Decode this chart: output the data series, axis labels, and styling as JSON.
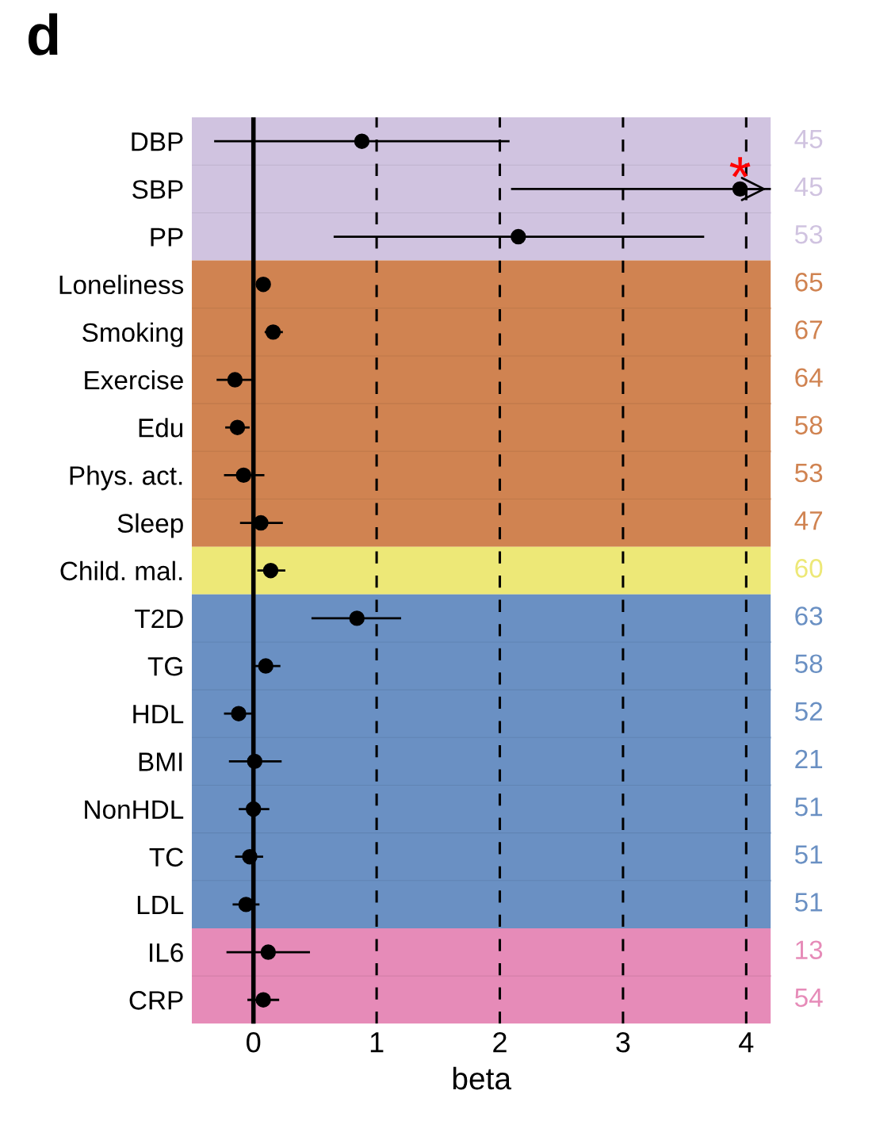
{
  "chart_data": {
    "type": "scatter",
    "orientation": "horizontal",
    "title": "d",
    "xlabel": "beta",
    "categories": [
      "DBP",
      "SBP",
      "PP",
      "Loneliness",
      "Smoking",
      "Exercise",
      "Edu",
      "Phys. act.",
      "Sleep",
      "Child. mal.",
      "T2D",
      "TG",
      "HDL",
      "BMI",
      "NonHDL",
      "TC",
      "LDL",
      "IL6",
      "CRP"
    ],
    "series": [
      {
        "color": "#000000",
        "values": [
          0.88,
          3.95,
          2.15,
          0.08,
          0.16,
          -0.15,
          -0.13,
          -0.08,
          0.06,
          0.14,
          0.84,
          0.1,
          -0.12,
          0.01,
          0.0,
          -0.03,
          -0.06,
          0.12,
          0.08
        ],
        "errors": [
          [
            -0.31,
            2.07
          ],
          [
            2.1,
            4.2
          ],
          [
            0.66,
            3.65
          ],
          null,
          [
            0.1,
            0.23
          ],
          [
            -0.29,
            -0.02
          ],
          [
            -0.22,
            -0.04
          ],
          [
            -0.23,
            0.08
          ],
          [
            -0.1,
            0.23
          ],
          [
            0.04,
            0.25
          ],
          [
            0.48,
            1.19
          ],
          [
            0.01,
            0.21
          ],
          [
            -0.23,
            -0.02
          ],
          [
            -0.19,
            0.22
          ],
          [
            -0.11,
            0.12
          ],
          [
            -0.14,
            0.07
          ],
          [
            -0.16,
            0.04
          ],
          [
            -0.21,
            0.45
          ],
          [
            -0.04,
            0.2
          ]
        ]
      }
    ],
    "marker": "circle",
    "xlim": [
      -0.5,
      4.2
    ],
    "xticks": [
      0,
      1,
      2,
      3,
      4
    ],
    "grid": "x",
    "line_style": "dashed",
    "ref_lines": [
      {
        "axis": "x",
        "value": 0,
        "color": "#000000",
        "line_style": "solid"
      }
    ],
    "bands": [
      {
        "axis": "y",
        "from": "DBP",
        "to": "PP",
        "color": "#d0c3e0"
      },
      {
        "axis": "y",
        "from": "Loneliness",
        "to": "Sleep",
        "color": "#d08351"
      },
      {
        "axis": "y",
        "from": "Child. mal.",
        "to": "Child. mal.",
        "color": "#ede877"
      },
      {
        "axis": "y",
        "from": "T2D",
        "to": "LDL",
        "color": "#6a90c3"
      },
      {
        "axis": "y",
        "from": "IL6",
        "to": "CRP",
        "color": "#e68bb8"
      }
    ],
    "annotations": [
      {
        "text": "*",
        "x": 3.95,
        "y": "SBP"
      },
      "45",
      "45",
      "53",
      "65",
      "67",
      "64",
      "58",
      "53",
      "47",
      "60",
      "63",
      "58",
      "52",
      "21",
      "51",
      "51",
      "51",
      "13",
      "54"
    ]
  }
}
